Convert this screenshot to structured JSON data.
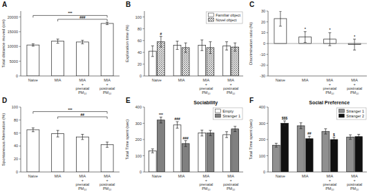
{
  "chart_data": [
    {
      "type": "bar",
      "title": "A",
      "ylabel": "Total distance moved (cm)",
      "categories": [
        "Naive",
        "MIA",
        "MIA\n+\nprenatal\nPM₁₀",
        "MIA\n+\npostnatal\nPM₁₀"
      ],
      "values": [
        10500,
        11800,
        11500,
        17800
      ],
      "errors": [
        400,
        700,
        600,
        400
      ],
      "color": "white",
      "ylim": [
        0,
        22000
      ],
      "yticks": [
        0,
        5000,
        10000,
        15000,
        20000
      ],
      "grid": false,
      "annotations": [
        {
          "text": "***",
          "x1": 0,
          "x2": 3,
          "y": 20500
        },
        {
          "text": "###",
          "x1": 1,
          "x2": 3,
          "y": 19200
        }
      ]
    },
    {
      "type": "bar",
      "title": "B",
      "ylabel": "Exploration time (%)",
      "categories": [
        "Naive",
        "MIA",
        "MIA\n+\nprenatal\nPM₁₀",
        "MIA\n+\npostnatal\nPM₁₀"
      ],
      "series": [
        {
          "name": "Familiar object",
          "color": "white",
          "values": [
            42,
            52,
            52,
            51
          ],
          "errors": [
            9,
            7,
            9,
            7
          ]
        },
        {
          "name": "Novel object",
          "color": "white",
          "values": [
            58,
            48,
            48,
            49
          ],
          "errors": [
            9,
            8,
            10,
            7
          ]
        }
      ],
      "ylim": [
        0,
        110
      ],
      "yticks": [
        0,
        20,
        40,
        60,
        80,
        100
      ],
      "grid": false,
      "legend": "top-right",
      "annotations": [
        {
          "text": "#",
          "series": 1,
          "index": 0
        }
      ]
    },
    {
      "type": "bar",
      "title": "C",
      "ylabel": "Discrimination ratio (%)",
      "categories": [
        "Naive",
        "MIA",
        "MIA\n+\nprenatal\nPM₁₀",
        "MIA\n+\npostnatal\nPM₁₀"
      ],
      "values": [
        23,
        6,
        4,
        -1
      ],
      "errors": [
        7,
        5,
        6,
        5
      ],
      "color": "white",
      "ylim": [
        -30,
        30
      ],
      "yticks": [
        -30,
        -20,
        -10,
        0,
        10,
        20,
        30
      ],
      "grid": false,
      "annotations": [
        {
          "text": "*",
          "index": 1
        },
        {
          "text": "*",
          "index": 2
        },
        {
          "text": "*",
          "index": 3
        }
      ]
    },
    {
      "type": "bar",
      "title": "D",
      "ylabel": "Spontaneous Alternation (%)",
      "categories": [
        "Naive",
        "MIA",
        "MIA\n+\nprenatal\nPM₁₀",
        "MIA\n+\npostnatal\nPM₁₀"
      ],
      "values": [
        65,
        59,
        54,
        42
      ],
      "errors": [
        3,
        5,
        4,
        4
      ],
      "color": "white",
      "ylim": [
        0,
        100
      ],
      "yticks": [
        0,
        20,
        40,
        60,
        80,
        100
      ],
      "grid": false,
      "annotations": [
        {
          "text": "***",
          "x1": 0,
          "x2": 3,
          "y": 93
        },
        {
          "text": "##",
          "x1": 1,
          "x2": 3,
          "y": 85
        }
      ]
    },
    {
      "type": "bar",
      "title": "E",
      "subtitle": "Sociability",
      "ylabel": "Total Time spent (sec)",
      "categories": [
        "Naive",
        "MIA",
        "MIA\n+\nprenatal\nPM₁₀",
        "MIA\n+\npostnatal\nPM₁₀"
      ],
      "series": [
        {
          "name": "Empty",
          "color": "white",
          "values": [
            130,
            290,
            240,
            230
          ],
          "errors": [
            12,
            20,
            18,
            18
          ]
        },
        {
          "name": "Stranger 1",
          "color": "#808080",
          "values": [
            320,
            175,
            240,
            265
          ],
          "errors": [
            18,
            18,
            16,
            16
          ]
        }
      ],
      "ylim": [
        0,
        400
      ],
      "yticks": [
        0,
        100,
        200,
        300,
        400
      ],
      "grid": false,
      "legend": "top-right",
      "annotations": [
        {
          "text": "###",
          "series": 0,
          "index": 1
        },
        {
          "text": "***",
          "series": 1,
          "index": 0
        },
        {
          "text": "###",
          "series": 1,
          "index": 1
        }
      ]
    },
    {
      "type": "bar",
      "title": "F",
      "subtitle": "Social Preference",
      "ylabel": "Total Time spent (sec)",
      "categories": [
        "Naive",
        "MIA",
        "MIA\n+\nprenatal\nPM₁₀",
        "MIA\n+\npostnatal\nPM₁₀"
      ],
      "series": [
        {
          "name": "Stranger 1",
          "color": "#909090",
          "values": [
            165,
            285,
            250,
            215
          ],
          "errors": [
            12,
            18,
            16,
            14
          ]
        },
        {
          "name": "Stranger 2",
          "color": "#101010",
          "values": [
            300,
            205,
            200,
            218
          ],
          "errors": [
            15,
            15,
            14,
            14
          ]
        }
      ],
      "ylim": [
        0,
        400
      ],
      "yticks": [
        0,
        100,
        200,
        300,
        400
      ],
      "grid": false,
      "legend": "top-right",
      "annotations": [
        {
          "text": "$$$",
          "series": 1,
          "index": 0
        },
        {
          "text": "##",
          "series": 1,
          "index": 1
        },
        {
          "text": "$",
          "series": 1,
          "index": 2
        }
      ]
    }
  ]
}
